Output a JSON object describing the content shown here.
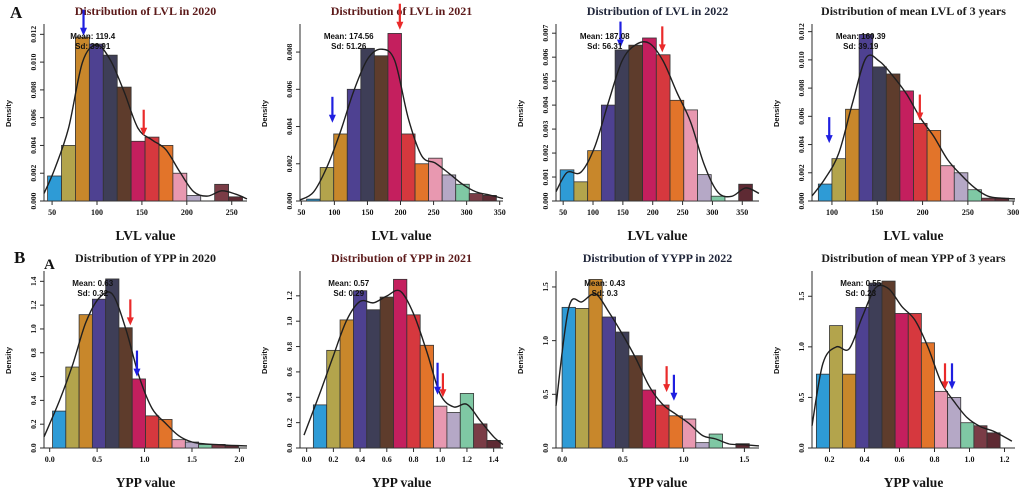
{
  "panels": {
    "row_a_label": "A",
    "row_b_label": "B",
    "row_b_inner_label": "A"
  },
  "palette": [
    "#2E9BD6",
    "#B3A44C",
    "#C8872B",
    "#4E4191",
    "#3E3E57",
    "#5E3C2C",
    "#C41F5E",
    "#D6383E",
    "#E2742A",
    "#E898B0",
    "#B5A8C6",
    "#7FC8A4",
    "#7A3C46",
    "#5E2A33"
  ],
  "arrow_colors": {
    "blue": "#1F1FE0",
    "red": "#EA2A2A"
  },
  "title_colors": {
    "maroon": "#5C1A1A",
    "navy": "#20263A",
    "black": "#1C1C1C"
  },
  "curve_color": "#1f1f1f",
  "axis_color": "#2b2b2b",
  "chart_data": [
    {
      "type": "bar",
      "title": "Distribution of  LVL in 2020",
      "title_color": "maroon",
      "xlabel": "LVL value",
      "ylabel": "Density",
      "mean_label": "Mean: 119.4",
      "sd_label": "Sd: 39.91",
      "bin_start": 45,
      "bin_width": 15.5,
      "heights": [
        0.0018,
        0.004,
        0.0118,
        0.0113,
        0.0105,
        0.0082,
        0.0043,
        0.0046,
        0.004,
        0.002,
        0.0004,
        0,
        0.0012,
        0.0003
      ],
      "xlim": [
        41,
        267
      ],
      "ylim": [
        0,
        0.0126
      ],
      "xticks": [
        50,
        100,
        150,
        200,
        250
      ],
      "xtick_decimals": 0,
      "yticks": [
        0,
        0.002,
        0.004,
        0.006,
        0.008,
        0.01,
        0.012
      ],
      "ytick_decimals": 3,
      "arrows": [
        {
          "color": "blue",
          "x": 85,
          "tip_y": 0.0119
        },
        {
          "color": "red",
          "x": 152,
          "tip_y": 0.0047
        }
      ]
    },
    {
      "type": "bar",
      "title": "Distribution of  LVL in 2021",
      "title_color": "maroon",
      "xlabel": "LVL value",
      "ylabel": "Density",
      "mean_label": "Mean: 174.56",
      "sd_label": "Sd: 51.26",
      "bin_start": 58,
      "bin_width": 20.5,
      "heights": [
        0.0001,
        0.0018,
        0.0036,
        0.006,
        0.0082,
        0.0078,
        0.009,
        0.0036,
        0.002,
        0.0023,
        0.0014,
        0.0009,
        0.0004,
        0.0003
      ],
      "xlim": [
        48,
        355
      ],
      "ylim": [
        0,
        0.0094
      ],
      "xticks": [
        50,
        100,
        150,
        200,
        250,
        300,
        350
      ],
      "xtick_decimals": 0,
      "yticks": [
        0,
        0.002,
        0.004,
        0.006,
        0.008
      ],
      "ytick_decimals": 3,
      "arrows": [
        {
          "color": "blue",
          "x": 97,
          "tip_y": 0.0042
        },
        {
          "color": "red",
          "x": 199,
          "tip_y": 0.0092
        }
      ]
    },
    {
      "type": "bar",
      "title": "Distribution of  LVL in 2022",
      "title_color": "navy",
      "xlabel": "LVL value",
      "ylabel": "Density",
      "mean_label": "Mean: 187.08",
      "sd_label": "Sd: 56.31",
      "bin_start": 45,
      "bin_width": 23,
      "heights": [
        0.0013,
        0.0008,
        0.0021,
        0.004,
        0.0063,
        0.0065,
        0.0068,
        0.0061,
        0.0042,
        0.0038,
        0.0011,
        0.0002,
        0,
        0.0007
      ],
      "xlim": [
        38,
        378
      ],
      "ylim": [
        0,
        0.0073
      ],
      "xticks": [
        50,
        100,
        150,
        200,
        250,
        300,
        350
      ],
      "xtick_decimals": 0,
      "yticks": [
        0,
        0.001,
        0.002,
        0.003,
        0.004,
        0.005,
        0.006,
        0.007
      ],
      "ytick_decimals": 3,
      "arrows": [
        {
          "color": "blue",
          "x": 146,
          "tip_y": 0.0064
        },
        {
          "color": "red",
          "x": 216,
          "tip_y": 0.0062
        }
      ]
    },
    {
      "type": "bar",
      "title": "Distribution of  mean LVL of 3 years",
      "title_color": "black",
      "xlabel": "LVL value",
      "ylabel": "Density",
      "mean_label": "Mean: 160.39",
      "sd_label": "Sd: 39.19",
      "bin_start": 85,
      "bin_width": 15,
      "heights": [
        0.0012,
        0.003,
        0.0065,
        0.0118,
        0.0095,
        0.009,
        0.0078,
        0.0055,
        0.005,
        0.0025,
        0.002,
        0.0008,
        0.0002,
        0.0002
      ],
      "xlim": [
        78,
        302
      ],
      "ylim": [
        0,
        0.0124
      ],
      "xticks": [
        100,
        150,
        200,
        250,
        300
      ],
      "xtick_decimals": 0,
      "yticks": [
        0,
        0.002,
        0.004,
        0.006,
        0.008,
        0.01,
        0.012
      ],
      "ytick_decimals": 3,
      "arrows": [
        {
          "color": "blue",
          "x": 97,
          "tip_y": 0.0041
        },
        {
          "color": "red",
          "x": 197,
          "tip_y": 0.0057
        }
      ]
    },
    {
      "type": "bar",
      "title": "Distribution of YPP in 2020",
      "title_color": "black",
      "xlabel": "YPP value",
      "ylabel": "Density",
      "mean_label": "Mean: 0.63",
      "sd_label": "Sd: 0.32",
      "bin_start": 0.03,
      "bin_width": 0.14,
      "heights": [
        0.31,
        0.68,
        1.12,
        1.25,
        1.42,
        1.01,
        0.58,
        0.27,
        0.24,
        0.07,
        0.05,
        0.03,
        0.03,
        0.02
      ],
      "xlim": [
        -0.06,
        2.08
      ],
      "ylim": [
        0,
        1.47
      ],
      "xticks": [
        0,
        0.5,
        1.0,
        1.5,
        2.0
      ],
      "xtick_decimals": 1,
      "yticks": [
        0,
        0.2,
        0.4,
        0.6,
        0.8,
        1.0,
        1.2,
        1.4
      ],
      "ytick_decimals": 1,
      "arrows": [
        {
          "color": "red",
          "x": 0.85,
          "tip_y": 1.03
        },
        {
          "color": "blue",
          "x": 0.92,
          "tip_y": 0.6
        }
      ]
    },
    {
      "type": "bar",
      "title": "Distribution of YPP in 2021",
      "title_color": "maroon",
      "xlabel": "YPP value",
      "ylabel": "Density",
      "mean_label": "Mean: 0.57",
      "sd_label": "Sd: 0.29",
      "bin_start": 0.05,
      "bin_width": 0.1,
      "heights": [
        0.34,
        0.77,
        1.01,
        1.24,
        1.09,
        1.19,
        1.33,
        1.05,
        0.81,
        0.33,
        0.28,
        0.43,
        0.19,
        0.06
      ],
      "xlim": [
        -0.05,
        1.47
      ],
      "ylim": [
        0,
        1.38
      ],
      "xticks": [
        0,
        0.2,
        0.4,
        0.6,
        0.8,
        1.0,
        1.2,
        1.4
      ],
      "xtick_decimals": 1,
      "yticks": [
        0,
        0.2,
        0.4,
        0.6,
        0.8,
        1.0,
        1.2
      ],
      "ytick_decimals": 1,
      "arrows": [
        {
          "color": "blue",
          "x": 0.98,
          "tip_y": 0.42,
          "len": 32
        },
        {
          "color": "red",
          "x": 1.02,
          "tip_y": 0.4,
          "len": 24
        }
      ]
    },
    {
      "type": "bar",
      "title": "Distribution of YYPP in 2022",
      "title_color": "navy",
      "xlabel": "YPP value",
      "ylabel": "Density",
      "mean_label": "Mean: 0.43",
      "sd_label": "Sd: 0.3",
      "bin_start": 0,
      "bin_width": 0.11,
      "heights": [
        1.31,
        1.3,
        1.57,
        1.22,
        1.08,
        0.86,
        0.54,
        0.4,
        0.3,
        0.27,
        0.05,
        0.13,
        0,
        0.04
      ],
      "xlim": [
        -0.05,
        1.62
      ],
      "ylim": [
        0,
        1.63
      ],
      "xticks": [
        0,
        0.5,
        1.0,
        1.5
      ],
      "xtick_decimals": 1,
      "yticks": [
        0,
        0.5,
        1.0,
        1.5
      ],
      "ytick_decimals": 1,
      "arrows": [
        {
          "color": "red",
          "x": 0.86,
          "tip_y": 0.52
        },
        {
          "color": "blue",
          "x": 0.92,
          "tip_y": 0.44
        }
      ]
    },
    {
      "type": "bar",
      "title": "Distribution of mean YPP of 3 years",
      "title_color": "black",
      "xlabel": "YPP value",
      "ylabel": "Density",
      "mean_label": "Mean: 0.55",
      "sd_label": "Sd: 0.23",
      "bin_start": 0.125,
      "bin_width": 0.075,
      "heights": [
        0.73,
        1.21,
        0.73,
        1.39,
        1.63,
        1.65,
        1.33,
        1.33,
        1.04,
        0.56,
        0.5,
        0.25,
        0.22,
        0.15
      ],
      "xlim": [
        0.1,
        1.26
      ],
      "ylim": [
        0,
        1.73
      ],
      "xticks": [
        0.2,
        0.4,
        0.6,
        0.8,
        1.0,
        1.2
      ],
      "xtick_decimals": 1,
      "yticks": [
        0,
        0.5,
        1.0,
        1.5
      ],
      "ytick_decimals": 1,
      "arrows": [
        {
          "color": "red",
          "x": 0.86,
          "tip_y": 0.58
        },
        {
          "color": "blue",
          "x": 0.9,
          "tip_y": 0.58
        }
      ]
    }
  ]
}
